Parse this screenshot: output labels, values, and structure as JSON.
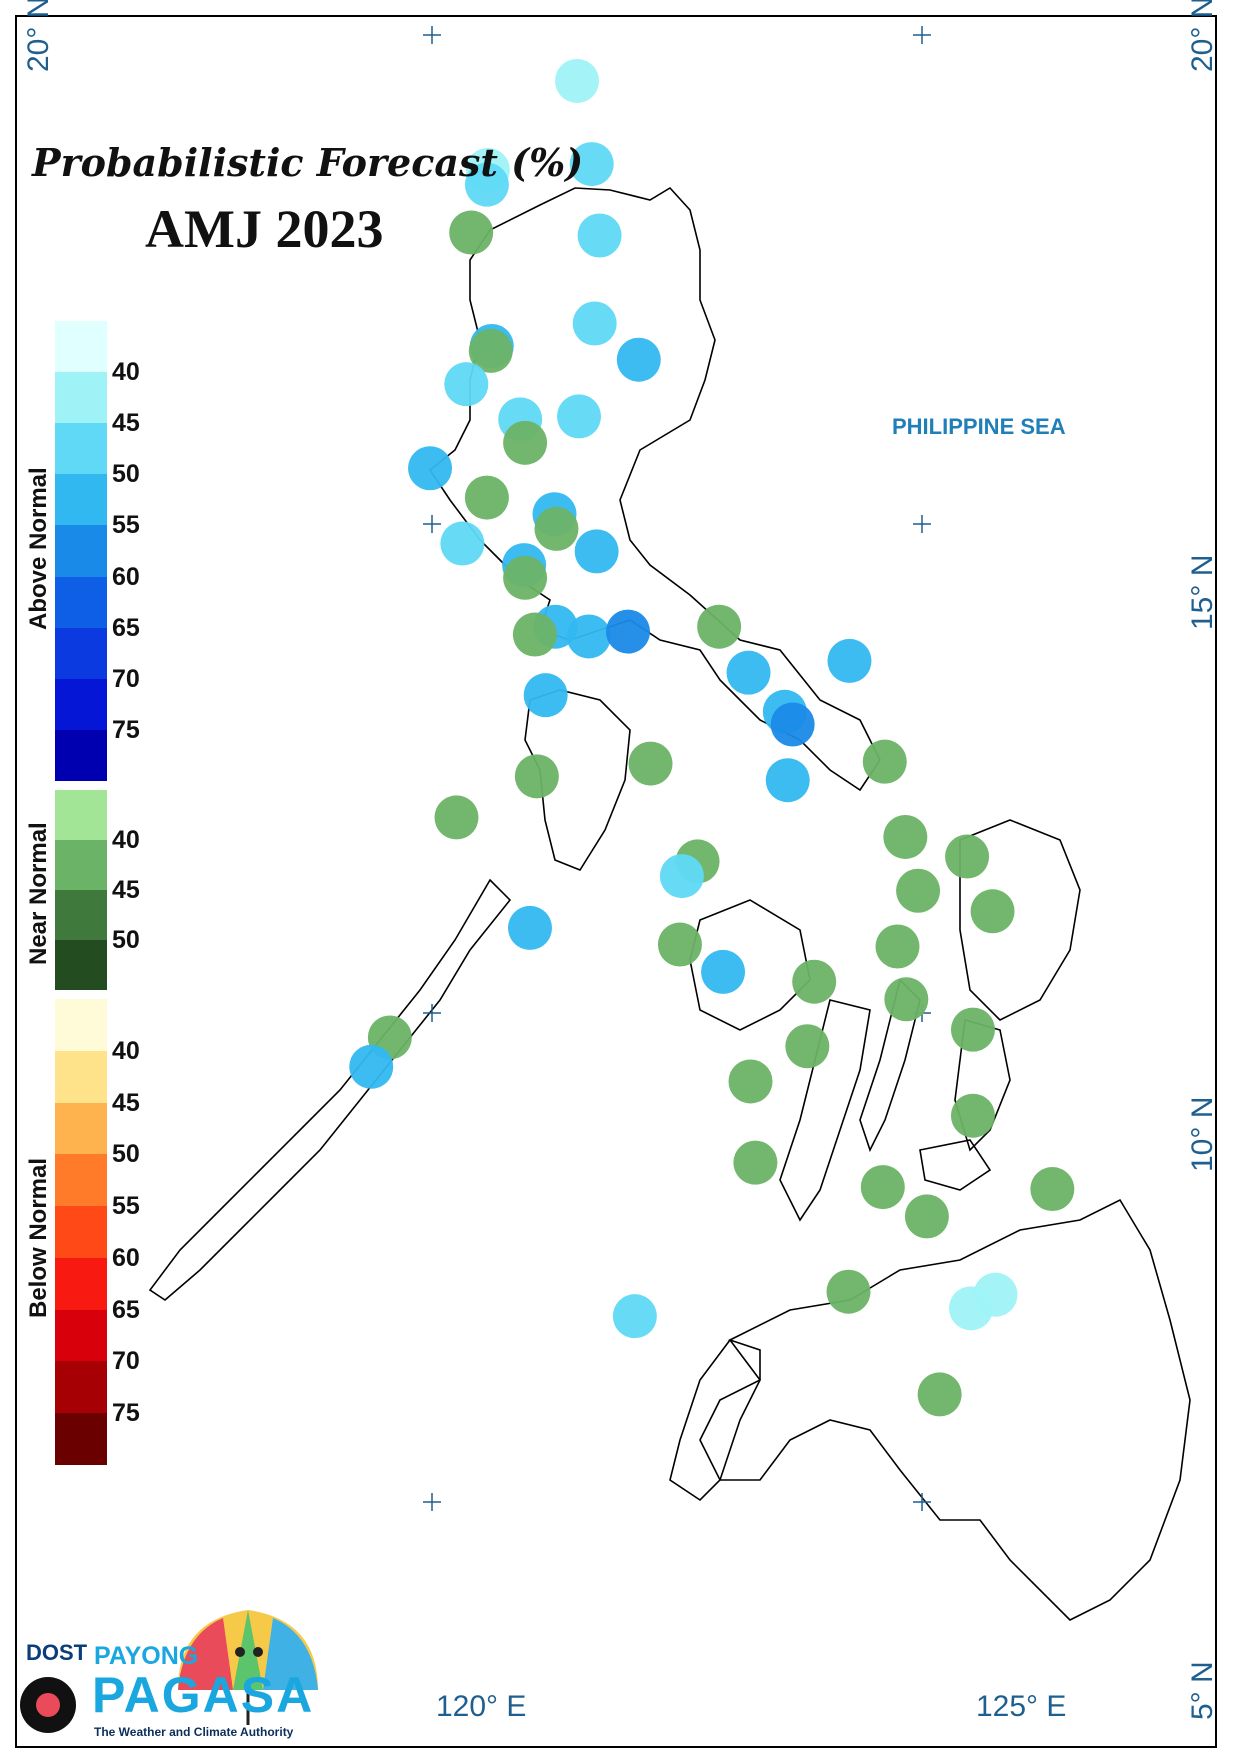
{
  "title": "Probabilistic Forecast (%)",
  "subtitle": "AMJ 2023",
  "sea_label": "PHILIPPINE SEA",
  "axes": {
    "lat_labels": [
      "20° N",
      "15° N",
      "10° N",
      "5° N"
    ],
    "lon_labels": [
      "120° E",
      "125° E"
    ]
  },
  "legend": {
    "above": {
      "title": "Above Normal",
      "ticks": [
        "40",
        "45",
        "50",
        "55",
        "60",
        "65",
        "70",
        "75"
      ],
      "colors": [
        "#e0ffff",
        "#9ff3f7",
        "#5fd9f5",
        "#32b8f0",
        "#1a8ae8",
        "#0f5ee6",
        "#0a3ae0",
        "#0616d6",
        "#0000b0"
      ]
    },
    "near": {
      "title": "Near Normal",
      "ticks": [
        "40",
        "45",
        "50"
      ],
      "colors": [
        "#a2e597",
        "#6bb366",
        "#3f7a3c",
        "#234d20"
      ]
    },
    "below": {
      "title": "Below Normal",
      "ticks": [
        "40",
        "45",
        "50",
        "55",
        "60",
        "65",
        "70",
        "75"
      ],
      "colors": [
        "#fffbd9",
        "#ffe38a",
        "#ffb34f",
        "#ff7b2a",
        "#ff4a18",
        "#f81a10",
        "#d8000a",
        "#a60005",
        "#6a0000"
      ]
    }
  },
  "logo": {
    "agency": "DOST",
    "line1": "PAYONG",
    "line2": "PAGASA",
    "tagline": "The Weather and Climate Authority"
  },
  "stations": [
    {
      "lon": 121.48,
      "lat": 19.53,
      "cat": "above",
      "pct": 40
    },
    {
      "lon": 121.63,
      "lat": 18.68,
      "cat": "above",
      "pct": 45
    },
    {
      "lon": 120.57,
      "lat": 18.62,
      "cat": "above",
      "pct": 40
    },
    {
      "lon": 120.56,
      "lat": 18.47,
      "cat": "above",
      "pct": 45
    },
    {
      "lon": 120.4,
      "lat": 17.98,
      "cat": "near",
      "pct": 40
    },
    {
      "lon": 121.71,
      "lat": 17.95,
      "cat": "above",
      "pct": 45
    },
    {
      "lon": 121.66,
      "lat": 17.05,
      "cat": "above",
      "pct": 45
    },
    {
      "lon": 120.61,
      "lat": 16.82,
      "cat": "above",
      "pct": 50
    },
    {
      "lon": 120.6,
      "lat": 16.77,
      "cat": "near",
      "pct": 40
    },
    {
      "lon": 122.11,
      "lat": 16.68,
      "cat": "above",
      "pct": 50
    },
    {
      "lon": 120.35,
      "lat": 16.43,
      "cat": "above",
      "pct": 45
    },
    {
      "lon": 121.5,
      "lat": 16.1,
      "cat": "above",
      "pct": 45
    },
    {
      "lon": 120.9,
      "lat": 16.07,
      "cat": "above",
      "pct": 45
    },
    {
      "lon": 120.95,
      "lat": 15.83,
      "cat": "near",
      "pct": 40
    },
    {
      "lon": 119.98,
      "lat": 15.57,
      "cat": "above",
      "pct": 50
    },
    {
      "lon": 120.56,
      "lat": 15.27,
      "cat": "near",
      "pct": 40
    },
    {
      "lon": 121.25,
      "lat": 15.1,
      "cat": "above",
      "pct": 50
    },
    {
      "lon": 121.27,
      "lat": 14.95,
      "cat": "near",
      "pct": 40
    },
    {
      "lon": 121.68,
      "lat": 14.72,
      "cat": "above",
      "pct": 50
    },
    {
      "lon": 120.31,
      "lat": 14.8,
      "cat": "above",
      "pct": 45
    },
    {
      "lon": 120.94,
      "lat": 14.58,
      "cat": "above",
      "pct": 50
    },
    {
      "lon": 120.95,
      "lat": 14.45,
      "cat": "near",
      "pct": 40
    },
    {
      "lon": 121.26,
      "lat": 13.95,
      "cat": "above",
      "pct": 50
    },
    {
      "lon": 121.05,
      "lat": 13.87,
      "cat": "near",
      "pct": 40
    },
    {
      "lon": 121.6,
      "lat": 13.85,
      "cat": "above",
      "pct": 50
    },
    {
      "lon": 122.0,
      "lat": 13.9,
      "cat": "above",
      "pct": 55
    },
    {
      "lon": 122.93,
      "lat": 13.95,
      "cat": "near",
      "pct": 40
    },
    {
      "lon": 124.26,
      "lat": 13.6,
      "cat": "above",
      "pct": 50
    },
    {
      "lon": 121.16,
      "lat": 13.25,
      "cat": "above",
      "pct": 50
    },
    {
      "lon": 123.23,
      "lat": 13.48,
      "cat": "above",
      "pct": 50
    },
    {
      "lon": 123.6,
      "lat": 13.08,
      "cat": "above",
      "pct": 50
    },
    {
      "lon": 123.68,
      "lat": 12.95,
      "cat": "above",
      "pct": 55
    },
    {
      "lon": 121.07,
      "lat": 12.42,
      "cat": "near",
      "pct": 40
    },
    {
      "lon": 122.23,
      "lat": 12.55,
      "cat": "near",
      "pct": 40
    },
    {
      "lon": 123.63,
      "lat": 12.38,
      "cat": "above",
      "pct": 50
    },
    {
      "lon": 124.62,
      "lat": 12.57,
      "cat": "near",
      "pct": 40
    },
    {
      "lon": 120.25,
      "lat": 12.0,
      "cat": "near",
      "pct": 40
    },
    {
      "lon": 124.83,
      "lat": 11.8,
      "cat": "near",
      "pct": 40
    },
    {
      "lon": 125.46,
      "lat": 11.6,
      "cat": "near",
      "pct": 40
    },
    {
      "lon": 122.71,
      "lat": 11.55,
      "cat": "near",
      "pct": 40
    },
    {
      "lon": 122.55,
      "lat": 11.4,
      "cat": "above",
      "pct": 45
    },
    {
      "lon": 124.96,
      "lat": 11.25,
      "cat": "near",
      "pct": 40
    },
    {
      "lon": 125.72,
      "lat": 11.04,
      "cat": "near",
      "pct": 40
    },
    {
      "lon": 121.0,
      "lat": 10.87,
      "cat": "above",
      "pct": 50
    },
    {
      "lon": 122.53,
      "lat": 10.7,
      "cat": "near",
      "pct": 40
    },
    {
      "lon": 124.75,
      "lat": 10.68,
      "cat": "near",
      "pct": 40
    },
    {
      "lon": 122.97,
      "lat": 10.42,
      "cat": "above",
      "pct": 50
    },
    {
      "lon": 123.9,
      "lat": 10.32,
      "cat": "near",
      "pct": 40
    },
    {
      "lon": 124.84,
      "lat": 10.14,
      "cat": "near",
      "pct": 40
    },
    {
      "lon": 119.57,
      "lat": 9.75,
      "cat": "near",
      "pct": 40
    },
    {
      "lon": 125.52,
      "lat": 9.83,
      "cat": "near",
      "pct": 40
    },
    {
      "lon": 123.83,
      "lat": 9.66,
      "cat": "near",
      "pct": 40
    },
    {
      "lon": 119.38,
      "lat": 9.45,
      "cat": "above",
      "pct": 50
    },
    {
      "lon": 123.25,
      "lat": 9.3,
      "cat": "near",
      "pct": 40
    },
    {
      "lon": 125.52,
      "lat": 8.95,
      "cat": "near",
      "pct": 40
    },
    {
      "lon": 123.3,
      "lat": 8.47,
      "cat": "near",
      "pct": 40
    },
    {
      "lon": 124.6,
      "lat": 8.22,
      "cat": "near",
      "pct": 40
    },
    {
      "lon": 126.33,
      "lat": 8.2,
      "cat": "near",
      "pct": 40
    },
    {
      "lon": 125.05,
      "lat": 7.92,
      "cat": "near",
      "pct": 40
    },
    {
      "lon": 125.75,
      "lat": 7.12,
      "cat": "above",
      "pct": 40
    },
    {
      "lon": 124.25,
      "lat": 7.15,
      "cat": "near",
      "pct": 40
    },
    {
      "lon": 125.5,
      "lat": 6.98,
      "cat": "above",
      "pct": 40
    },
    {
      "lon": 122.07,
      "lat": 6.9,
      "cat": "above",
      "pct": 45
    },
    {
      "lon": 125.18,
      "lat": 6.1,
      "cat": "near",
      "pct": 40
    }
  ]
}
